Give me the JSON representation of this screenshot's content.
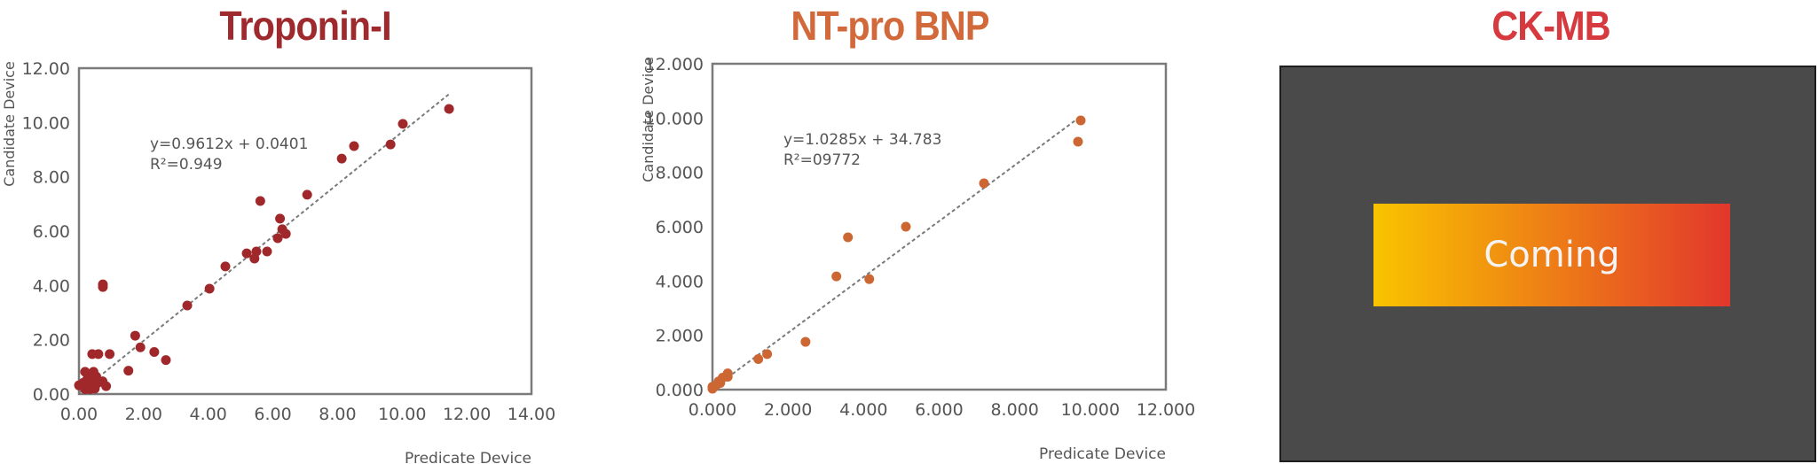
{
  "colors": {
    "troponin": "#a0282b",
    "ntprobnp": "#cc6633",
    "ckmb": "#d63a3f",
    "axis": "#7a7a7a",
    "trend": "#7a7a7a",
    "ckmb_panel": "#4a4a4a",
    "gradient_start": "#f9c400",
    "gradient_end": "#e2372c"
  },
  "chart_data": [
    {
      "type": "scatter",
      "title": "Troponin-I",
      "xlabel": "Predicate Device",
      "ylabel": "Candidate Device",
      "xlim": [
        0,
        14
      ],
      "ylim": [
        0,
        12
      ],
      "xticks": [
        "0.00",
        "2.00",
        "4.00",
        "6.00",
        "8.00",
        "10.00",
        "12.00",
        "14.00"
      ],
      "yticks": [
        "0.00",
        "2.00",
        "4.00",
        "6.00",
        "8.00",
        "10.00",
        "12.00"
      ],
      "grid": false,
      "trendline": {
        "slope": 0.9612,
        "intercept": 0.0401,
        "x_range": [
          0,
          11.5
        ],
        "style": "dashed"
      },
      "equation": "y=0.9612x + 0.0401",
      "r_squared_label": "R²=0.949",
      "points": [
        [
          11.45,
          10.5
        ],
        [
          10.02,
          9.95
        ],
        [
          9.64,
          9.19
        ],
        [
          8.51,
          9.13
        ],
        [
          8.13,
          8.67
        ],
        [
          7.06,
          7.34
        ],
        [
          5.61,
          7.11
        ],
        [
          6.22,
          6.46
        ],
        [
          6.29,
          6.07
        ],
        [
          6.4,
          5.9
        ],
        [
          6.15,
          5.74
        ],
        [
          5.82,
          5.25
        ],
        [
          5.49,
          5.25
        ],
        [
          5.19,
          5.18
        ],
        [
          5.43,
          4.99
        ],
        [
          4.53,
          4.7
        ],
        [
          4.04,
          3.88
        ],
        [
          3.35,
          3.26
        ],
        [
          0.74,
          4.04
        ],
        [
          0.74,
          3.94
        ],
        [
          1.74,
          2.15
        ],
        [
          1.9,
          1.72
        ],
        [
          2.33,
          1.55
        ],
        [
          2.69,
          1.25
        ],
        [
          1.53,
          0.86
        ],
        [
          0.95,
          1.47
        ],
        [
          0.6,
          1.47
        ],
        [
          0.41,
          1.47
        ],
        [
          0.0,
          0.32
        ],
        [
          0.19,
          0.82
        ],
        [
          0.45,
          0.82
        ],
        [
          0.25,
          0.53
        ],
        [
          0.36,
          0.35
        ],
        [
          0.53,
          0.65
        ],
        [
          0.73,
          0.47
        ],
        [
          0.84,
          0.29
        ],
        [
          0.19,
          0.18
        ],
        [
          0.34,
          0.18
        ],
        [
          0.49,
          0.2
        ],
        [
          0.13,
          0.41
        ],
        [
          0.58,
          0.41
        ],
        [
          0.41,
          0.59
        ]
      ]
    },
    {
      "type": "scatter",
      "title": "NT-pro BNP",
      "xlabel": "Predicate Device",
      "ylabel": "Candidate Device",
      "xlim": [
        0,
        12000
      ],
      "ylim": [
        0,
        12000
      ],
      "xticks": [
        "0.000",
        "2.000",
        "4.000",
        "6.000",
        "8.000",
        "10.000",
        "12.000"
      ],
      "yticks": [
        "0.000",
        "2.000",
        "4.000",
        "6.000",
        "8.000",
        "10.000",
        "12.000"
      ],
      "grid": false,
      "trendline": {
        "slope": 1.0285,
        "intercept": 34.783,
        "x_range": [
          0,
          9750
        ],
        "style": "dashed"
      },
      "equation": "y=1.0285x + 34.783",
      "r_squared_label": "R²=09772",
      "points": [
        [
          9746,
          9913
        ],
        [
          9675,
          9130
        ],
        [
          7186,
          7598
        ],
        [
          5119,
          6000
        ],
        [
          3586,
          5609
        ],
        [
          3280,
          4170
        ],
        [
          4150,
          4070
        ],
        [
          2463,
          1759
        ],
        [
          1447,
          1308
        ],
        [
          1213,
          1126
        ],
        [
          404,
          600
        ],
        [
          404,
          472
        ],
        [
          270,
          440
        ],
        [
          162,
          300
        ],
        [
          207,
          247
        ],
        [
          0,
          107
        ],
        [
          0,
          32
        ],
        [
          90,
          150
        ]
      ]
    }
  ],
  "ckmb": {
    "title": "CK-MB",
    "status": "Coming"
  }
}
